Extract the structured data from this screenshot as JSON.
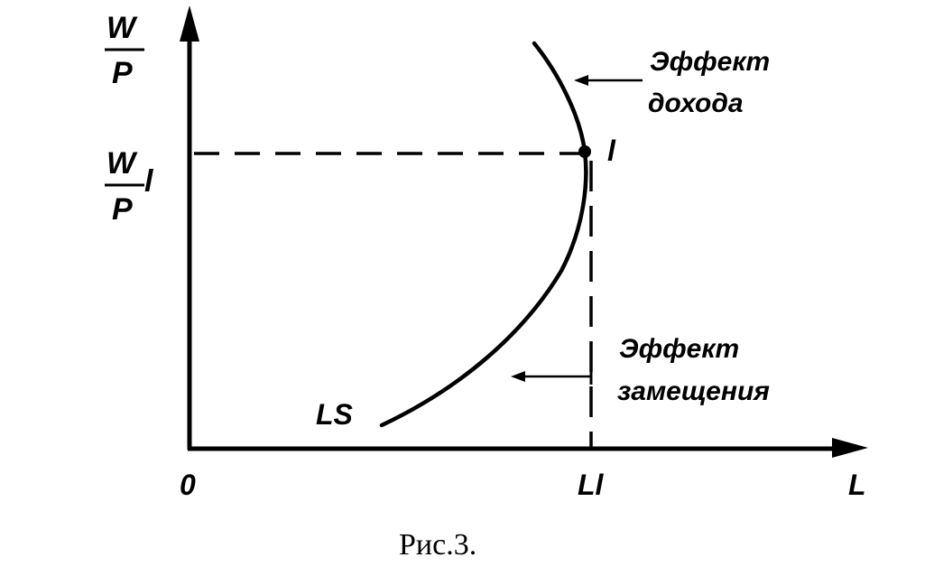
{
  "y_axis": {
    "numerator": "W",
    "denominator": "P"
  },
  "y_tick": {
    "numerator": "W",
    "denominator": "P",
    "subscript": "l"
  },
  "x_axis": {
    "label": "L",
    "origin": "0",
    "tick": "Ll"
  },
  "curve": {
    "label": "LS"
  },
  "point": {
    "label": "l"
  },
  "annotations": {
    "income_line1": "Эффект",
    "income_line2": "дохода",
    "substitution_line1": "Эффект",
    "substitution_line2": "замещения"
  },
  "caption": "Рис.3."
}
